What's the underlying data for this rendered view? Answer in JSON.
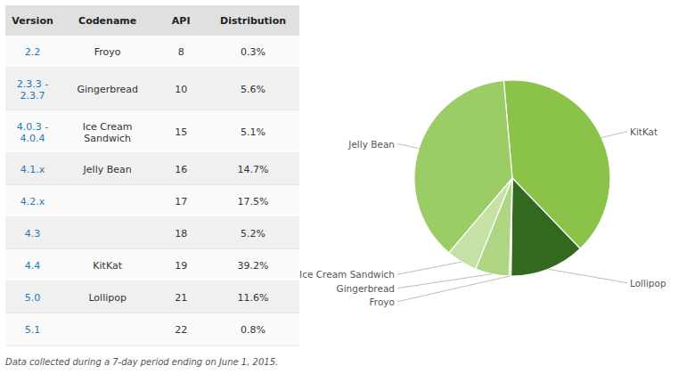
{
  "chart_data": [
    {
      "type": "table",
      "columns": [
        "Version",
        "Codename",
        "API",
        "Distribution"
      ],
      "rows": [
        [
          "2.2",
          "Froyo",
          "8",
          "0.3%"
        ],
        [
          "2.3.3 -\n2.3.7",
          "Gingerbread",
          "10",
          "5.6%"
        ],
        [
          "4.0.3 -\n4.0.4",
          "Ice Cream\nSandwich",
          "15",
          "5.1%"
        ],
        [
          "4.1.x",
          "Jelly Bean",
          "16",
          "14.7%"
        ],
        [
          "4.2.x",
          null,
          "17",
          "17.5%"
        ],
        [
          "4.3",
          null,
          "18",
          "5.2%"
        ],
        [
          "4.4",
          "KitKat",
          "19",
          "39.2%"
        ],
        [
          "5.0",
          "Lollipop",
          "21",
          "11.6%"
        ],
        [
          "5.1",
          null,
          "22",
          "0.8%"
        ]
      ],
      "caption": "Data collected during a 7-day period ending on June 1, 2015."
    },
    {
      "type": "pie",
      "categories": [
        "KitKat",
        "Lollipop",
        "Froyo",
        "Gingerbread",
        "Ice Cream Sandwich",
        "Jelly Bean"
      ],
      "values": [
        39.2,
        12.4,
        0.3,
        5.6,
        5.1,
        37.4
      ],
      "colors": [
        "#8bc34a",
        "#33691e",
        "#dce775",
        "#aed581",
        "#c5e1a5",
        "#9ccc65"
      ]
    }
  ]
}
